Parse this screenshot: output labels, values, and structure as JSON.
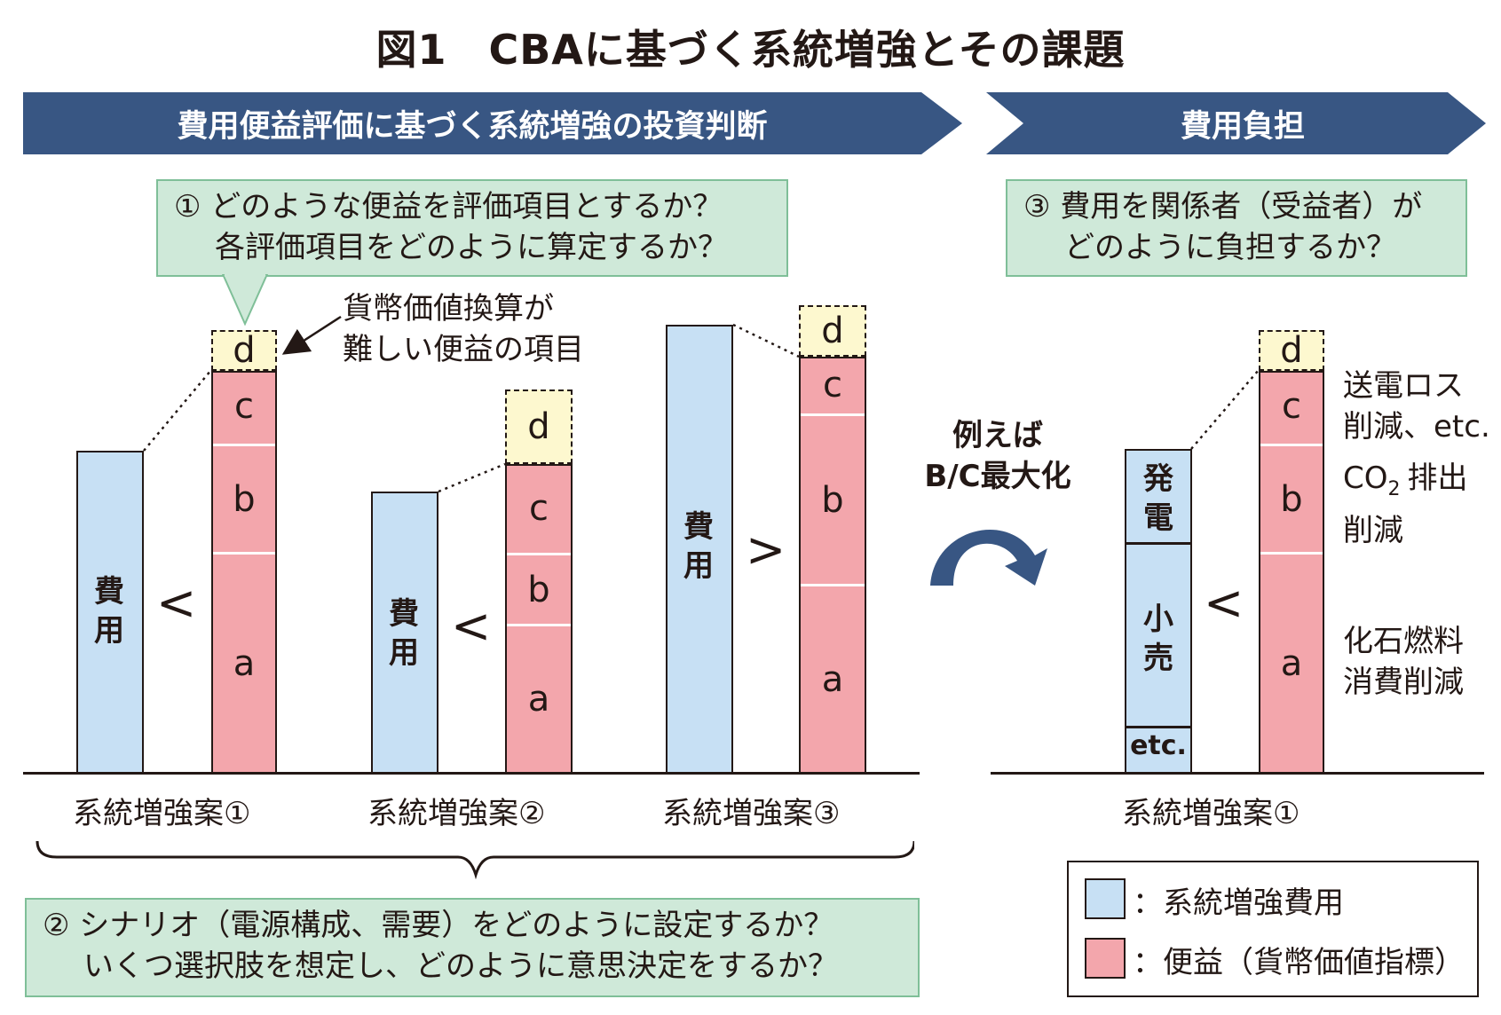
{
  "title": "図1　CBAに基づく系統増強とその課題",
  "banner_left": "費用便益評価に基づく系統増強の投資判断",
  "banner_right": "費用負担",
  "q1": {
    "line1": "① どのような便益を評価項目とするか？",
    "line2": "各評価項目をどのように算定するか？"
  },
  "q2": {
    "line1": "② シナリオ（電源構成、需要）をどのように設定するか？",
    "line2": "いくつ選択肢を想定し、どのように意思決定をするか？"
  },
  "q3": {
    "line1": "③ 費用を関係者（受益者）が",
    "line2": "どのように負担するか？"
  },
  "annotation_d": {
    "line1": "貨幣価値換算が",
    "line2": "難しい便益の項目"
  },
  "cost_label": "費用",
  "seg_labels": {
    "a": "a",
    "b": "b",
    "c": "c",
    "d": "d"
  },
  "comparisons": [
    "<",
    "<",
    ">",
    "<"
  ],
  "cases": [
    "系統増強案①",
    "系統増強案②",
    "系統増強案③",
    "系統増強案①"
  ],
  "middle_note": {
    "line1": "例えば",
    "line2": "B/C最大化"
  },
  "cost_split": {
    "top": "発電",
    "mid": "小売",
    "bottom": "etc."
  },
  "benefit_notes": {
    "c": [
      "送電ロス",
      "削減、etc."
    ],
    "b_prefix": "CO",
    "b_sub": "2",
    "b_suffix": "排出",
    "b_line2": "削減",
    "a": [
      "化石燃料",
      "消費削減"
    ]
  },
  "legend": {
    "cost": "：系統増強費用",
    "benefit": "：便益（貨幣価値指標）"
  },
  "colors": {
    "banner": "#385683",
    "cost": "#c7e0f4",
    "benefit": "#f3a6ac",
    "unquantified": "#fdf8cf",
    "question_bg": "#cfe9d9",
    "arrow": "#385683"
  }
}
